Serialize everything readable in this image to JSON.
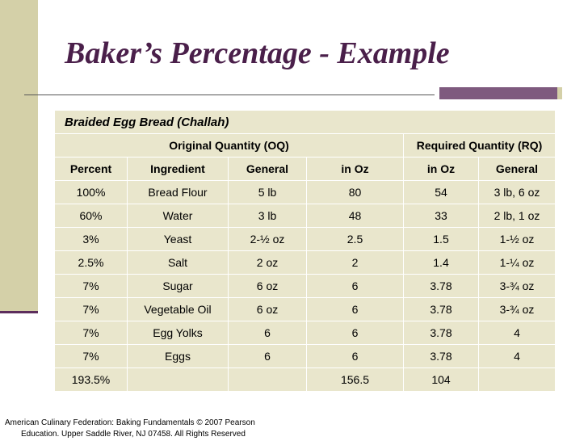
{
  "slide": {
    "title": "Baker’s Percentage - Example",
    "footer_line1": "American Culinary Federation: Baking Fundamentals © 2007 Pearson",
    "footer_line2": "Education. Upper Saddle River, NJ 07458. All Rights Reserved"
  },
  "table": {
    "caption": "Braided Egg Bread (Challah)",
    "group_oq": "Original Quantity (OQ)",
    "group_rq": "Required Quantity (RQ)",
    "headers": [
      "Percent",
      "Ingredient",
      "General",
      "in Oz",
      "in Oz",
      "General"
    ],
    "rows": [
      [
        "100%",
        "Bread Flour",
        "5 lb",
        "80",
        "54",
        "3 lb, 6 oz"
      ],
      [
        "60%",
        "Water",
        "3 lb",
        "48",
        "33",
        "2 lb, 1 oz"
      ],
      [
        "3%",
        "Yeast",
        "2-½ oz",
        "2.5",
        "1.5",
        "1-½ oz"
      ],
      [
        "2.5%",
        "Salt",
        "2 oz",
        "2",
        "1.4",
        "1-¼ oz"
      ],
      [
        "7%",
        "Sugar",
        "6 oz",
        "6",
        "3.78",
        "3-¾ oz"
      ],
      [
        "7%",
        "Vegetable Oil",
        "6 oz",
        "6",
        "3.78",
        "3-¾ oz"
      ],
      [
        "7%",
        "Egg Yolks",
        "6",
        "6",
        "3.78",
        "4"
      ],
      [
        "7%",
        "Eggs",
        "6",
        "6",
        "3.78",
        "4"
      ],
      [
        "193.5%",
        "",
        "",
        "156.5",
        "104",
        ""
      ]
    ]
  }
}
